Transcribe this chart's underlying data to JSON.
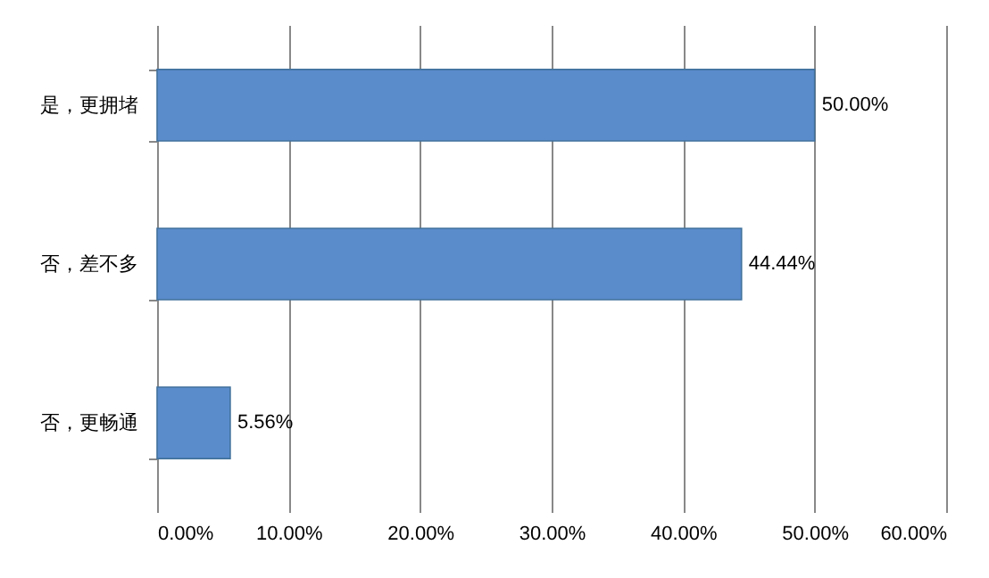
{
  "chart_data": {
    "type": "bar",
    "orientation": "horizontal",
    "categories": [
      "是，更拥堵",
      "否，差不多",
      "否，更畅通"
    ],
    "values": [
      50,
      44.44,
      5.56
    ],
    "value_labels": [
      "50.00%",
      "44.44%",
      "5.56%"
    ],
    "color": "#5a8ccc",
    "xlim": [
      0,
      60
    ],
    "xticks": [
      {
        "value": 0,
        "label": "0.00%"
      },
      {
        "value": 10,
        "label": "10.00%"
      },
      {
        "value": 20,
        "label": "20.00%"
      },
      {
        "value": 30,
        "label": "30.00%"
      },
      {
        "value": 40,
        "label": "40.00%"
      },
      {
        "value": 50,
        "label": "50.00%"
      },
      {
        "value": 60,
        "label": "60.00%"
      }
    ],
    "grid": "x"
  }
}
